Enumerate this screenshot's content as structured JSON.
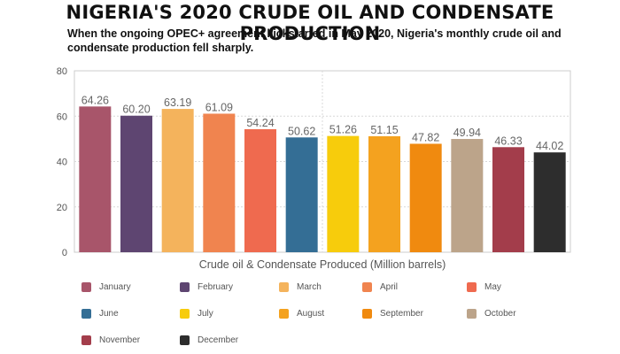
{
  "chart_data": {
    "type": "bar",
    "title": "NIGERIA'S 2020 CRUDE OIL AND CONDENSATE PRODUCTION",
    "subtitle": "When the ongoing OPEC+ agreement kickstarted in May 2020, Nigeria's monthly crude oil and condensate production fell sharply.",
    "xlabel": "Crude oil & Condensate Produced (Million barrels)",
    "ylabel": "",
    "ylim": [
      0,
      80
    ],
    "yticks": [
      "0",
      "20",
      "40",
      "60",
      "80"
    ],
    "grid": true,
    "legend_position": "bottom",
    "categories": [
      "January",
      "February",
      "March",
      "April",
      "May",
      "June",
      "July",
      "August",
      "September",
      "October",
      "November",
      "December"
    ],
    "values": [
      64.26,
      60.2,
      63.19,
      61.09,
      54.24,
      50.62,
      51.26,
      51.15,
      47.82,
      49.94,
      46.33,
      44.02
    ],
    "value_labels": [
      "64.26",
      "60.20",
      "63.19",
      "61.09",
      "54.24",
      "50.62",
      "51.26",
      "51.15",
      "47.82",
      "49.94",
      "46.33",
      "44.02"
    ],
    "colors": [
      "#a8556a",
      "#5e4571",
      "#f4b35c",
      "#f0844f",
      "#ef6a4f",
      "#346e95",
      "#f7cc0c",
      "#f4a21f",
      "#f08a0f",
      "#bca48a",
      "#a33d4b",
      "#2d2d2d"
    ]
  }
}
